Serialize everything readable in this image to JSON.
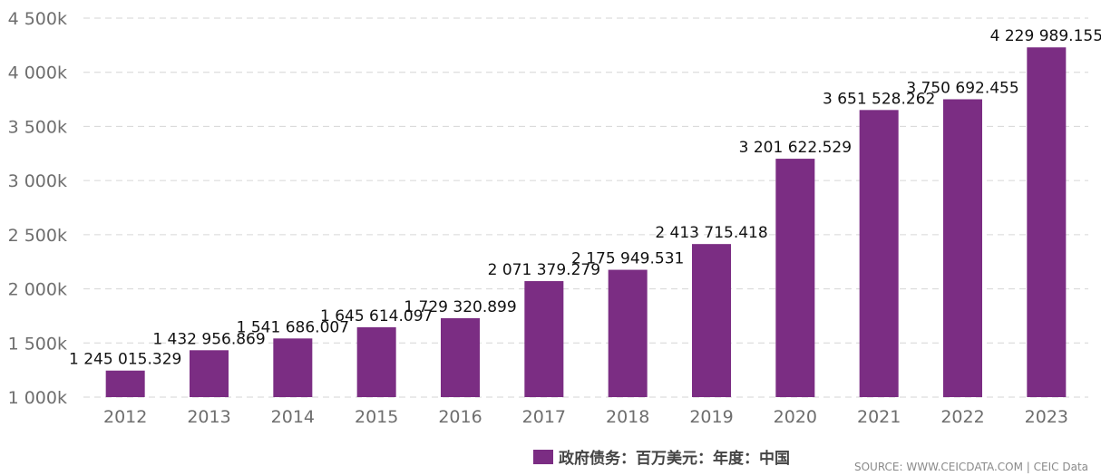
{
  "chart_data": {
    "type": "bar",
    "categories": [
      "2012",
      "2013",
      "2014",
      "2015",
      "2016",
      "2017",
      "2018",
      "2019",
      "2020",
      "2021",
      "2022",
      "2023"
    ],
    "series": [
      {
        "name": "政府债务：百万美元：年度：中国",
        "values": [
          1245015.329,
          1432956.869,
          1541686.007,
          1645614.097,
          1729320.899,
          2071379.279,
          2175949.531,
          2413715.418,
          3201622.529,
          3651528.262,
          3750692.455,
          4229989.155
        ]
      }
    ],
    "data_labels": [
      "1 245 015.329",
      "1 432 956.869",
      "1 541 686.007",
      "1 645 614.097",
      "1 729 320.899",
      "2 071 379.279",
      "2 175 949.531",
      "2 413 715.418",
      "3 201 622.529",
      "3 651 528.262",
      "3 750 692.455",
      "4 229 989.155"
    ],
    "ylim": [
      1000000,
      4500000
    ],
    "yticks": [
      1000000,
      1500000,
      2000000,
      2500000,
      3000000,
      3500000,
      4000000,
      4500000
    ],
    "ytick_labels": [
      "1 000k",
      "1 500k",
      "2 000k",
      "2 500k",
      "3 000k",
      "3 500k",
      "4 000k",
      "4 500k"
    ],
    "grid": true,
    "legend_position": "bottom",
    "bar_color": "#7b2d83",
    "title": "",
    "xlabel": "",
    "ylabel": ""
  },
  "legend": {
    "label": "政府债务：百万美元：年度：中国",
    "color": "#7b2d83"
  },
  "source": "SOURCE: WWW.CEICDATA.COM | CEIC Data"
}
